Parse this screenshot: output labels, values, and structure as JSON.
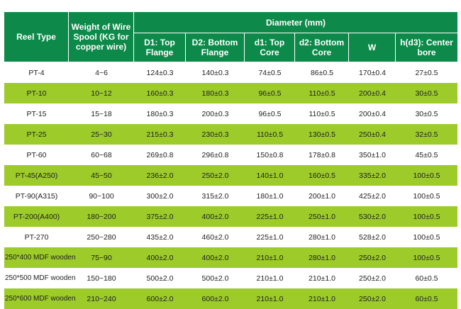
{
  "header": {
    "reel_type": "Reel Type",
    "weight": "Weight of Wire Spool (KG for copper wire)",
    "diameter": "Diameter (mm)",
    "sub": [
      "D1: Top Flange",
      "D2: Bottom Flange",
      "d1: Top Core",
      "d2: Bottom Core",
      "W",
      "h(d3): Center bore"
    ]
  },
  "rows": [
    [
      "PT-4",
      "4~6",
      "124±0.3",
      "140±0.3",
      "74±0.5",
      "86±0.5",
      "170±0.4",
      "27±0.5"
    ],
    [
      "PT-10",
      "10~12",
      "160±0.3",
      "180±0.3",
      "96±0.5",
      "110±0.5",
      "200±0.4",
      "30±0.5"
    ],
    [
      "PT-15",
      "15~18",
      "180±0.3",
      "200±0.3",
      "96±0.5",
      "110±0.5",
      "200±0.4",
      "30±0.5"
    ],
    [
      "PT-25",
      "25~30",
      "215±0.3",
      "230±0.3",
      "110±0.5",
      "130±0.5",
      "250±0.4",
      "32±0.5"
    ],
    [
      "PT-60",
      "60~68",
      "269±0.8",
      "296±0.8",
      "150±0.8",
      "178±0.8",
      "350±1.0",
      "45±0.5"
    ],
    [
      "PT-45(A250)",
      "45~50",
      "236±2.0",
      "250±2.0",
      "140±1.0",
      "160±0.5",
      "335±2.0",
      "100±0.5"
    ],
    [
      "PT-90(A315)",
      "90~100",
      "300±2.0",
      "315±2.0",
      "180±1.0",
      "200±1.0",
      "425±2.0",
      "100±0.5"
    ],
    [
      "PT-200(A400)",
      "180~200",
      "375±2.0",
      "400±2.0",
      "225±1.0",
      "250±1.0",
      "530±2.0",
      "100±0.5"
    ],
    [
      "PT-270",
      "250~280",
      "435±2.0",
      "460±2.0",
      "225±1.0",
      "280±1.0",
      "528±2.0",
      "100±0.5"
    ],
    [
      "250*400 MDF wooden",
      "75~90",
      "400±2.0",
      "400±2.0",
      "210±1.0",
      "280±1.0",
      "250±2.0",
      "100±0.5"
    ],
    [
      "250*500 MDF wooden",
      "150~180",
      "500±2.0",
      "500±2.0",
      "210±1.0",
      "210±1.0",
      "250±2.0",
      "60±0.5"
    ],
    [
      "250*600 MDF wooden",
      "210~240",
      "600±2.0",
      "600±2.0",
      "210±1.0",
      "210±1.0",
      "250±2.0",
      "60±0.5"
    ]
  ]
}
